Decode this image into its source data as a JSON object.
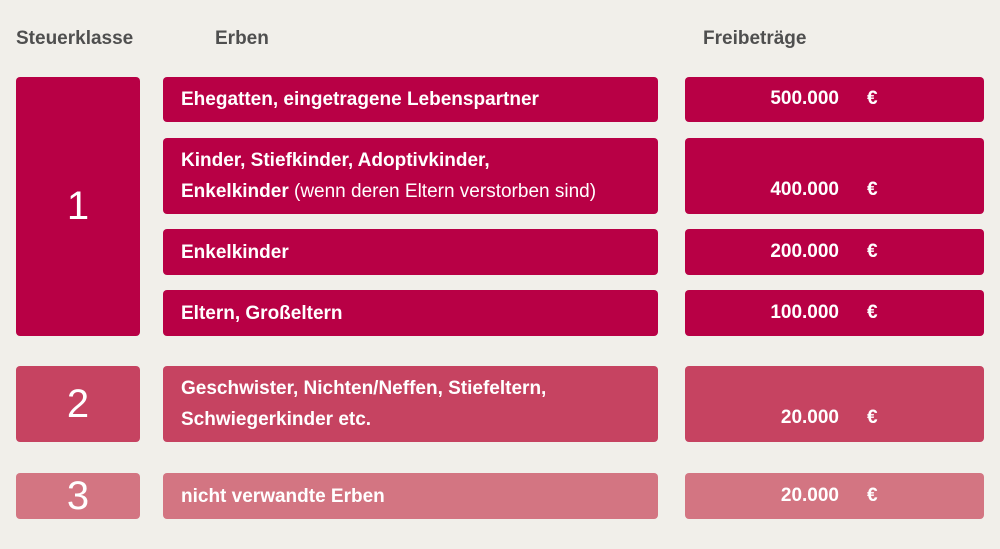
{
  "headers": {
    "klasse": "Steuerklasse",
    "erben": "Erben",
    "freibetraege": "Freibeträge"
  },
  "classes": [
    {
      "label": "1"
    },
    {
      "label": "2"
    },
    {
      "label": "3"
    }
  ],
  "rows": [
    {
      "erben": "Ehegatten, eingetragene Lebenspartner",
      "amount": "500.000",
      "currency": "€"
    },
    {
      "erben_line1": "Kinder, Stiefkinder, Adoptivkinder,",
      "erben_line2": "Enkelkinder",
      "erben_note": " (wenn deren Eltern verstorben sind)",
      "amount": "400.000",
      "currency": "€"
    },
    {
      "erben": "Enkelkinder",
      "amount": "200.000",
      "currency": "€"
    },
    {
      "erben": "Eltern, Großeltern",
      "amount": "100.000",
      "currency": "€"
    },
    {
      "erben_line1": "Geschwister, Nichten/Neffen, Stiefeltern,",
      "erben_line2": "Schwiegerkinder etc.",
      "amount": "20.000",
      "currency": "€"
    },
    {
      "erben": "nicht verwandte Erben",
      "amount": "20.000",
      "currency": "€"
    }
  ],
  "colors": {
    "klasse1": "#b80045",
    "klasse2": "#c64361",
    "klasse3": "#d37582",
    "background": "#f1efea",
    "header_text": "#4f4f4f"
  }
}
